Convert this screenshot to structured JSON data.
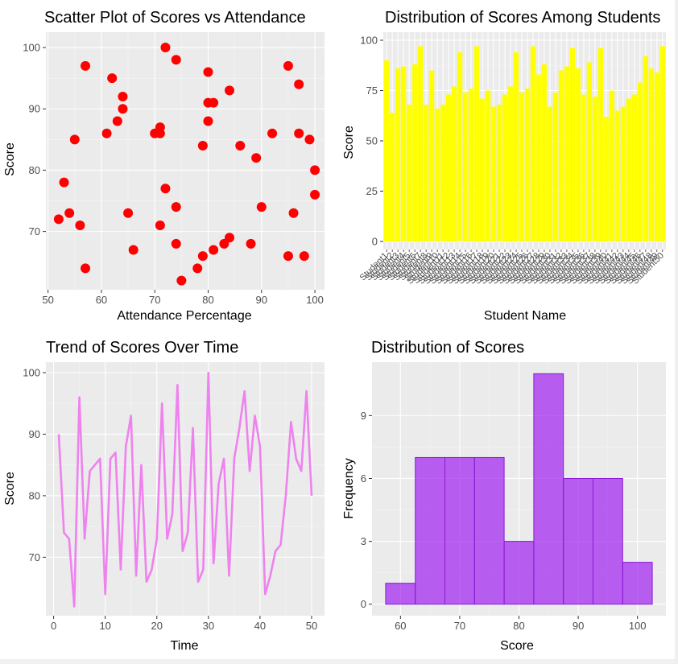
{
  "colors": {
    "panel_bg": "#ebebeb",
    "grid_major": "#ffffff",
    "grid_minor": "#f5f5f5",
    "tick_text": "#4d4d4d",
    "scatter": "#ff0000",
    "bar": "#ffff00",
    "line": "#ee82ee",
    "hist_fill": "#a020f0",
    "hist_stroke": "#8a1ad6"
  },
  "chart_data": [
    {
      "type": "scatter",
      "title": "Scatter Plot of Scores vs Attendance",
      "xlabel": "Attendance Percentage",
      "ylabel": "Score",
      "xlim": [
        49.6,
        101.8
      ],
      "ylim": [
        60.5,
        102.5
      ],
      "xticks": [
        50,
        60,
        70,
        80,
        90,
        100
      ],
      "yticks": [
        70,
        80,
        90,
        100
      ],
      "x": [
        52,
        53,
        54,
        55,
        56,
        57,
        57,
        62,
        61,
        63,
        64,
        64,
        65,
        66,
        70,
        71,
        71,
        71,
        72,
        72,
        74,
        74,
        74,
        75,
        78,
        79,
        79,
        80,
        80,
        80,
        81,
        81,
        83,
        84,
        84,
        86,
        88,
        89,
        90,
        92,
        95,
        95,
        96,
        97,
        97,
        98,
        99,
        100,
        100
      ],
      "y": [
        72,
        78,
        73,
        85,
        71,
        97,
        64,
        95,
        86,
        88,
        92,
        90,
        73,
        67,
        86,
        87,
        86,
        71,
        100,
        77,
        98,
        74,
        68,
        62,
        64,
        84,
        66,
        96,
        91,
        88,
        91,
        67,
        68,
        93,
        69,
        84,
        68,
        82,
        74,
        86,
        97,
        66,
        73,
        94,
        86,
        66,
        85,
        80,
        76
      ]
    },
    {
      "type": "bar",
      "title": "Distribution of Scores Among Students",
      "xlabel": "Student Name",
      "ylabel": "Score",
      "ylim": [
        -4,
        104
      ],
      "yticks": [
        0,
        25,
        50,
        75,
        100
      ],
      "categories": [
        "Student1",
        "Student2",
        "Student3",
        "Student4",
        "Student5",
        "Student6",
        "Student7",
        "Student8",
        "Student9",
        "Student10",
        "Student11",
        "Student12",
        "Student13",
        "Student14",
        "Student15",
        "Student16",
        "Student17",
        "Student18",
        "Student19",
        "Student20",
        "Student21",
        "Student22",
        "Student23",
        "Student24",
        "Student25",
        "Student26",
        "Student27",
        "Student28",
        "Student29",
        "Student30",
        "Student31",
        "Student32",
        "Student33",
        "Student34",
        "Student35",
        "Student36",
        "Student37",
        "Student38",
        "Student39",
        "Student40",
        "Student41",
        "Student42",
        "Student43",
        "Student44",
        "Student45",
        "Student46",
        "Student47",
        "Student48",
        "Student49",
        "Student50"
      ],
      "values": [
        90,
        64,
        86,
        87,
        68,
        88,
        97,
        68,
        85,
        66,
        68,
        73,
        77,
        94,
        74,
        76,
        97,
        71,
        75,
        67,
        68,
        73,
        77,
        94,
        74,
        76,
        97,
        83,
        88,
        67,
        74,
        85,
        87,
        96,
        86,
        73,
        89,
        72,
        96,
        62,
        75,
        65,
        67,
        71,
        73,
        79,
        92,
        86,
        84,
        97
      ]
    },
    {
      "type": "line",
      "title": "Trend of Scores Over Time",
      "xlabel": "Time",
      "ylabel": "Score",
      "xlim": [
        -1.5,
        52.5
      ],
      "ylim": [
        60.5,
        101.7
      ],
      "xticks": [
        0,
        10,
        20,
        30,
        40,
        50
      ],
      "yticks": [
        70,
        80,
        90,
        100
      ],
      "x": [
        1,
        2,
        3,
        4,
        5,
        6,
        7,
        8,
        9,
        10,
        11,
        12,
        13,
        14,
        15,
        16,
        17,
        18,
        19,
        20,
        21,
        22,
        23,
        24,
        25,
        26,
        27,
        28,
        29,
        30,
        31,
        32,
        33,
        34,
        35,
        36,
        37,
        38,
        39,
        40,
        41,
        42,
        43,
        44,
        45,
        46,
        47,
        48,
        49,
        50
      ],
      "values": [
        90,
        74,
        73,
        62,
        96,
        73,
        84,
        85,
        86,
        64,
        86,
        87,
        68,
        88,
        93,
        67,
        85,
        66,
        68,
        73,
        95,
        73,
        77,
        98,
        71,
        74,
        91,
        66,
        68,
        100,
        69,
        82,
        86,
        67,
        86,
        91,
        97,
        84,
        93,
        88,
        64,
        67,
        71,
        72,
        80,
        92,
        86,
        84,
        97,
        80
      ]
    },
    {
      "type": "histogram",
      "title": "Distribution of Scores",
      "xlabel": "Score",
      "ylabel": "Frequency",
      "xlim": [
        55.2,
        104.8
      ],
      "ylim": [
        -0.55,
        11.55
      ],
      "xticks": [
        60,
        70,
        80,
        90,
        100
      ],
      "yticks": [
        0,
        3,
        6,
        9
      ],
      "bins": [
        [
          57.5,
          62.5
        ],
        [
          62.5,
          67.5
        ],
        [
          67.5,
          72.5
        ],
        [
          72.5,
          77.5
        ],
        [
          77.5,
          82.5
        ],
        [
          82.5,
          87.5
        ],
        [
          87.5,
          92.5
        ],
        [
          92.5,
          97.5
        ],
        [
          97.5,
          102.5
        ]
      ],
      "values": [
        1,
        7,
        7,
        7,
        3,
        11,
        6,
        6,
        2
      ]
    }
  ]
}
